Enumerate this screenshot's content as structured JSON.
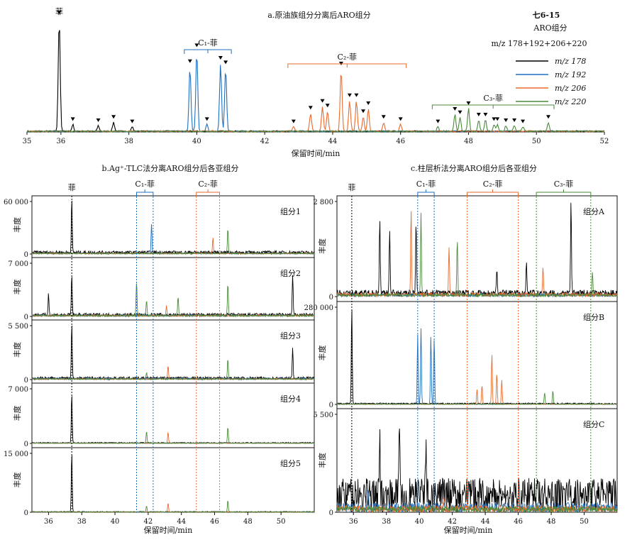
{
  "colors": {
    "m178": "#000000",
    "m192": "#1f6fbf",
    "m206": "#ea6a2c",
    "m220": "#4a8a3a"
  },
  "chart_data": [
    {
      "type": "line",
      "title": "a.原油族组分分离后ARO组分",
      "sample": "七6-15",
      "fraction": "ARO组分",
      "mz_label": "m/z 178+192+206+220",
      "xlabel": "保留时间/min",
      "xlim": [
        35,
        52
      ],
      "xticks": [
        35,
        36,
        38,
        40,
        42,
        44,
        46,
        48,
        50,
        52
      ],
      "legend": {
        "position": "right",
        "entries": [
          {
            "label": "m/z 178",
            "color": "#000000"
          },
          {
            "label": "m/z 192",
            "color": "#1f6fbf"
          },
          {
            "label": "m/z 206",
            "color": "#ea6a2c"
          },
          {
            "label": "m/z 220",
            "color": "#4a8a3a"
          }
        ]
      },
      "annotations": [
        {
          "text": "菲",
          "x": 35.95
        },
        {
          "text": "C₁-菲",
          "range": [
            39.8,
            40.85
          ]
        },
        {
          "text": "C₂-菲",
          "range": [
            42.85,
            46.0
          ]
        },
        {
          "text": "C₃-菲",
          "range": [
            47.1,
            50.35
          ]
        }
      ],
      "series": [
        {
          "name": "m/z 178",
          "peaks": [
            [
              35.95,
              1.0
            ],
            [
              36.35,
              0.06
            ],
            [
              37.1,
              0.05
            ],
            [
              37.55,
              0.08
            ],
            [
              38.1,
              0.04
            ]
          ]
        },
        {
          "name": "m/z 192",
          "peaks": [
            [
              39.8,
              0.57
            ],
            [
              40.0,
              0.71
            ],
            [
              40.3,
              0.06
            ],
            [
              40.7,
              0.6
            ],
            [
              40.85,
              0.56
            ]
          ]
        },
        {
          "name": "m/z 206",
          "peaks": [
            [
              42.85,
              0.04
            ],
            [
              43.35,
              0.16
            ],
            [
              43.7,
              0.22
            ],
            [
              43.85,
              0.18
            ],
            [
              44.25,
              0.55
            ],
            [
              44.5,
              0.27
            ],
            [
              44.7,
              0.27
            ],
            [
              44.9,
              0.13
            ],
            [
              45.05,
              0.2
            ],
            [
              45.5,
              0.08
            ],
            [
              46.0,
              0.06
            ]
          ]
        },
        {
          "name": "m/z 220",
          "peaks": [
            [
              47.1,
              0.04
            ],
            [
              47.6,
              0.15
            ],
            [
              47.75,
              0.12
            ],
            [
              48.0,
              0.2
            ],
            [
              48.3,
              0.1
            ],
            [
              48.5,
              0.1
            ],
            [
              48.75,
              0.06
            ],
            [
              48.85,
              0.06
            ],
            [
              49.1,
              0.05
            ],
            [
              49.35,
              0.05
            ],
            [
              49.6,
              0.04
            ],
            [
              50.35,
              0.08
            ]
          ]
        }
      ]
    },
    {
      "type": "line",
      "title": "b.Ag⁺-TLC法分离ARO组分后各亚组分",
      "xlabel": "保留时间/min",
      "ylabel": "丰度",
      "xlim": [
        35,
        52
      ],
      "xticks": [
        36,
        38,
        40,
        42,
        44,
        46,
        48,
        50
      ],
      "annotations": [
        {
          "text": "菲",
          "x": 37.4
        },
        {
          "text": "C₁-菲",
          "range": [
            41.3,
            42.3
          ]
        },
        {
          "text": "C₂-菲",
          "range": [
            44.9,
            46.3
          ]
        }
      ],
      "panels": [
        {
          "name": "组分1",
          "ymax_label": "60 000",
          "peaks": [
            {
              "series": "m/z 178",
              "x": 37.4,
              "h": 1.0
            },
            {
              "series": "m/z 192",
              "x": 42.2,
              "h": 0.55
            },
            {
              "series": "m/z 206",
              "x": 45.9,
              "h": 0.3
            },
            {
              "series": "m/z 220",
              "x": 46.8,
              "h": 0.48
            }
          ]
        },
        {
          "name": "组分2",
          "ymax_label": "7 000",
          "peaks": [
            {
              "series": "m/z 178",
              "x": 37.4,
              "h": 0.75
            },
            {
              "series": "m/z 178",
              "x": 36.0,
              "h": 0.4
            },
            {
              "series": "m/z 220",
              "x": 41.3,
              "h": 0.65
            },
            {
              "series": "m/z 220",
              "x": 41.9,
              "h": 0.3
            },
            {
              "series": "m/z 220",
              "x": 43.8,
              "h": 0.35
            },
            {
              "series": "m/z 220",
              "x": 46.8,
              "h": 0.62
            },
            {
              "series": "m/z 178",
              "x": 50.7,
              "h": 0.72
            },
            {
              "series": "m/z 206",
              "x": 43.1,
              "h": 0.2
            }
          ]
        },
        {
          "name": "组分3",
          "ymax_label": "5 500",
          "peaks": [
            {
              "series": "m/z 178",
              "x": 37.4,
              "h": 1.0
            },
            {
              "series": "m/z 178",
              "x": 50.7,
              "h": 0.55
            },
            {
              "series": "m/z 206",
              "x": 43.2,
              "h": 0.25
            },
            {
              "series": "m/z 220",
              "x": 46.8,
              "h": 0.38
            },
            {
              "series": "m/z 220",
              "x": 41.9,
              "h": 0.12
            }
          ]
        },
        {
          "name": "组分4",
          "ymax_label": "7 000",
          "peaks": [
            {
              "series": "m/z 178",
              "x": 37.4,
              "h": 0.9
            },
            {
              "series": "m/z 220",
              "x": 41.9,
              "h": 0.22
            },
            {
              "series": "m/z 206",
              "x": 43.2,
              "h": 0.2
            },
            {
              "series": "m/z 220",
              "x": 46.8,
              "h": 0.3
            }
          ]
        },
        {
          "name": "组分5",
          "ymax_label": "15 000",
          "peaks": [
            {
              "series": "m/z 178",
              "x": 37.4,
              "h": 1.0
            },
            {
              "series": "m/z 206",
              "x": 43.2,
              "h": 0.15
            },
            {
              "series": "m/z 220",
              "x": 46.8,
              "h": 0.2
            },
            {
              "series": "m/z 220",
              "x": 41.9,
              "h": 0.1
            }
          ]
        }
      ]
    },
    {
      "type": "line",
      "title": "c.柱层析法分离ARO组分后各亚组分",
      "xlabel": "保留时间/min",
      "ylabel": "丰度",
      "xlim": [
        35,
        52
      ],
      "xticks": [
        36,
        38,
        40,
        42,
        44,
        46,
        48,
        50
      ],
      "annotations": [
        {
          "text": "菲",
          "x": 35.9
        },
        {
          "text": "C₁-菲",
          "range": [
            39.9,
            40.9
          ]
        },
        {
          "text": "C₂-菲",
          "range": [
            42.9,
            46.0
          ]
        },
        {
          "text": "C₃-菲",
          "range": [
            47.1,
            50.4
          ]
        }
      ],
      "panels": [
        {
          "name": "组分A",
          "ymax_label": "2 800",
          "peaks": [
            {
              "series": "m/z 178",
              "x": 37.6,
              "h": 0.75
            },
            {
              "series": "m/z 178",
              "x": 38.2,
              "h": 0.65
            },
            {
              "series": "m/z 206",
              "x": 39.5,
              "h": 0.9
            },
            {
              "series": "m/z 178",
              "x": 39.8,
              "h": 0.78
            },
            {
              "series": "m/z 220",
              "x": 40.1,
              "h": 0.85
            },
            {
              "series": "m/z 206",
              "x": 41.8,
              "h": 0.5
            },
            {
              "series": "m/z 220",
              "x": 42.3,
              "h": 0.6
            },
            {
              "series": "m/z 178",
              "x": 44.7,
              "h": 0.25
            },
            {
              "series": "m/z 178",
              "x": 46.5,
              "h": 0.35
            },
            {
              "series": "m/z 206",
              "x": 47.5,
              "h": 0.3
            },
            {
              "series": "m/z 178",
              "x": 49.2,
              "h": 0.95
            },
            {
              "series": "m/z 220",
              "x": 50.5,
              "h": 0.25
            }
          ]
        },
        {
          "name": "组分B",
          "ymax_label": "280 000",
          "peaks": [
            {
              "series": "m/z 178",
              "x": 35.9,
              "h": 1.0
            },
            {
              "series": "m/z 192",
              "x": 39.9,
              "h": 0.72
            },
            {
              "series": "m/z 192",
              "x": 40.1,
              "h": 0.78
            },
            {
              "series": "m/z 192",
              "x": 40.7,
              "h": 0.7
            },
            {
              "series": "m/z 192",
              "x": 40.9,
              "h": 0.68
            },
            {
              "series": "m/z 206",
              "x": 43.5,
              "h": 0.15
            },
            {
              "series": "m/z 206",
              "x": 43.8,
              "h": 0.2
            },
            {
              "series": "m/z 206",
              "x": 44.4,
              "h": 0.52
            },
            {
              "series": "m/z 206",
              "x": 44.7,
              "h": 0.32
            },
            {
              "series": "m/z 206",
              "x": 45.0,
              "h": 0.25
            },
            {
              "series": "m/z 220",
              "x": 47.6,
              "h": 0.12
            },
            {
              "series": "m/z 220",
              "x": 48.1,
              "h": 0.14
            }
          ]
        },
        {
          "name": "组分C",
          "ymax_label": "5 500",
          "peaks": [
            {
              "series": "m/z 178",
              "x": 38.8,
              "h": 0.85
            },
            {
              "series": "m/z 178",
              "x": 37.6,
              "h": 0.55
            },
            {
              "series": "m/z 178",
              "x": 40.4,
              "h": 0.55
            },
            {
              "series": "m/z 192",
              "x": 36.9,
              "h": 0.2
            },
            {
              "series": "m/z 206",
              "x": 41.5,
              "h": 0.12
            }
          ]
        }
      ]
    }
  ]
}
